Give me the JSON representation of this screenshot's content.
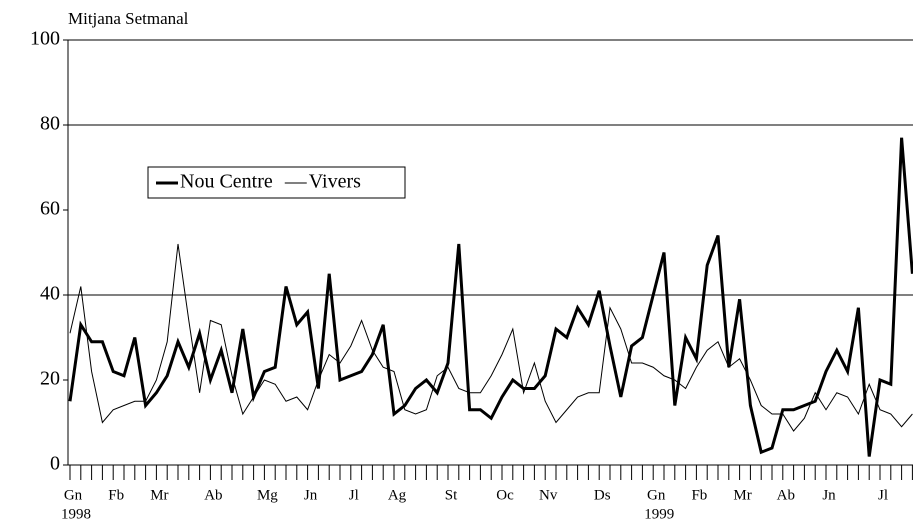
{
  "chart_data": {
    "type": "line",
    "title": "Mitjana Setmanal",
    "categories": [
      "Gn",
      null,
      null,
      null,
      "Fb",
      null,
      null,
      null,
      "Mr",
      null,
      null,
      null,
      null,
      "Ab",
      null,
      null,
      null,
      null,
      "Mg",
      null,
      null,
      null,
      "Jn",
      null,
      null,
      null,
      "Jl",
      null,
      null,
      null,
      "Ag",
      null,
      null,
      null,
      null,
      "St",
      null,
      null,
      null,
      null,
      "Oc",
      null,
      null,
      null,
      "Nv",
      null,
      null,
      null,
      null,
      "Ds",
      null,
      null,
      null,
      null,
      "Gn",
      null,
      null,
      null,
      "Fb",
      null,
      null,
      null,
      "Mr",
      null,
      null,
      null,
      "Ab",
      null,
      null,
      null,
      "Jn",
      null,
      null,
      null,
      null,
      "Jl",
      null,
      null,
      null
    ],
    "category_years": [
      "1998",
      null,
      null,
      null,
      null,
      null,
      null,
      null,
      null,
      null,
      null,
      null,
      null,
      null,
      null,
      null,
      null,
      null,
      null,
      null,
      null,
      null,
      null,
      null,
      null,
      null,
      null,
      null,
      null,
      null,
      null,
      null,
      null,
      null,
      null,
      null,
      null,
      null,
      null,
      null,
      null,
      null,
      null,
      null,
      null,
      null,
      null,
      null,
      null,
      null,
      null,
      null,
      null,
      null,
      "1999",
      null,
      null,
      null,
      null,
      null,
      null,
      null,
      null,
      null,
      null,
      null,
      null,
      null,
      null,
      null,
      null,
      null,
      null,
      null,
      null,
      null,
      null,
      null,
      null
    ],
    "series": [
      {
        "name": "Nou Centre",
        "color": "#000000",
        "width": 3,
        "values": [
          15,
          33,
          29,
          29,
          22,
          21,
          30,
          14,
          17,
          21,
          29,
          23,
          31,
          20,
          27,
          17,
          32,
          16,
          22,
          23,
          42,
          33,
          36,
          18,
          45,
          20,
          21,
          22,
          26,
          33,
          12,
          14,
          18,
          20,
          17,
          24,
          52,
          13,
          13,
          11,
          16,
          20,
          18,
          18,
          21,
          32,
          30,
          37,
          33,
          41,
          28,
          16,
          28,
          30,
          40,
          50,
          14,
          30,
          25,
          47,
          54,
          23,
          39,
          14,
          3,
          4,
          13,
          13,
          14,
          15,
          22,
          27,
          22,
          37,
          2,
          20,
          19,
          77,
          45
        ]
      },
      {
        "name": "Vivers",
        "color": "#000000",
        "width": 1,
        "values": [
          31,
          42,
          22,
          10,
          13,
          14,
          15,
          15,
          20,
          29,
          52,
          34,
          17,
          34,
          33,
          21,
          12,
          16,
          20,
          19,
          15,
          16,
          13,
          20,
          26,
          24,
          28,
          34,
          27,
          23,
          22,
          13,
          12,
          13,
          21,
          23,
          18,
          17,
          17,
          21,
          26,
          32,
          17,
          24,
          15,
          10,
          13,
          16,
          17,
          17,
          37,
          32,
          24,
          24,
          23,
          21,
          20,
          18,
          23,
          27,
          29,
          23,
          25,
          20,
          14,
          12,
          12,
          8,
          11,
          17,
          13,
          17,
          16,
          12,
          19,
          13,
          12,
          9,
          12
        ]
      }
    ],
    "ylim": [
      0,
      100
    ],
    "yticks": [
      0,
      20,
      40,
      60,
      80,
      100
    ],
    "grid_values": [
      40,
      80,
      100
    ]
  }
}
